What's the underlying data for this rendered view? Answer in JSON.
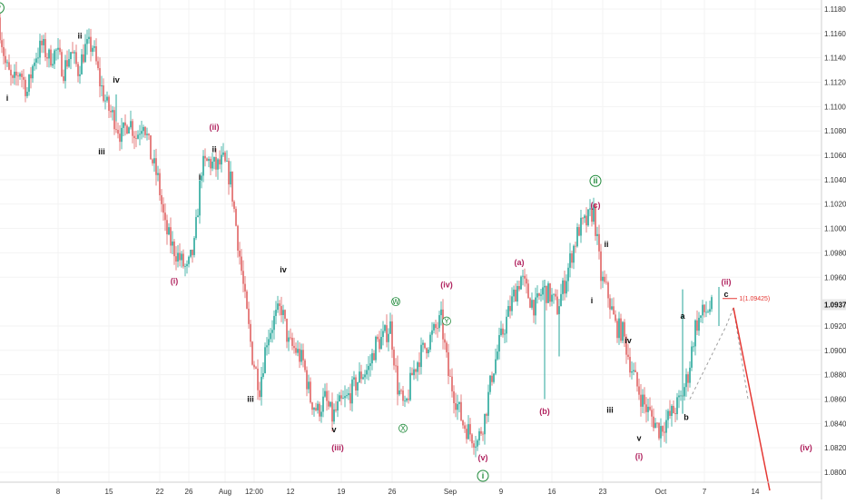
{
  "chart_data": {
    "type": "candlestick",
    "title": "",
    "xlabel": "",
    "ylabel": "",
    "ylim": [
      1.079,
      1.1195
    ],
    "y_ticks": [
      1.118,
      1.116,
      1.114,
      1.112,
      1.11,
      1.108,
      1.106,
      1.104,
      1.102,
      1.1,
      1.098,
      1.096,
      1.092,
      1.09,
      1.088,
      1.086,
      1.084,
      1.082,
      1.08
    ],
    "y_tick_labels": [
      "1.11800",
      "1.11600",
      "1.11400",
      "1.11200",
      "1.11000",
      "1.10800",
      "1.10600",
      "1.10400",
      "1.10200",
      "1.10000",
      "1.09800",
      "1.09600",
      "1.09200",
      "1.09000",
      "1.08800",
      "1.08600",
      "1.08400",
      "1.08200",
      "1.08000"
    ],
    "x_ticks": [
      {
        "label": "8",
        "t": 8
      },
      {
        "label": "15",
        "t": 15
      },
      {
        "label": "22",
        "t": 22
      },
      {
        "label": "26",
        "t": 26
      },
      {
        "label": "Aug",
        "t": 31
      },
      {
        "label": "12:00",
        "t": 35
      },
      {
        "label": "12",
        "t": 40
      },
      {
        "label": "19",
        "t": 47
      },
      {
        "label": "26",
        "t": 54
      },
      {
        "label": "Sep",
        "t": 62
      },
      {
        "label": "9",
        "t": 69
      },
      {
        "label": "16",
        "t": 76
      },
      {
        "label": "23",
        "t": 83
      },
      {
        "label": "Oct",
        "t": 91
      },
      {
        "label": "7",
        "t": 97
      },
      {
        "label": "14",
        "t": 104
      }
    ],
    "current_price": {
      "label": "1.09375",
      "value": 1.09375
    },
    "price_path": [
      [
        0,
        1.1173
      ],
      [
        1,
        1.1135
      ],
      [
        2,
        1.1118
      ],
      [
        3,
        1.113
      ],
      [
        4,
        1.1112
      ],
      [
        5,
        1.114
      ],
      [
        6,
        1.115
      ],
      [
        7,
        1.114
      ],
      [
        8,
        1.1145
      ],
      [
        9,
        1.113
      ],
      [
        10,
        1.1145
      ],
      [
        11,
        1.113
      ],
      [
        12,
        1.1148
      ],
      [
        13,
        1.115
      ],
      [
        14,
        1.112
      ],
      [
        15,
        1.11
      ],
      [
        16,
        1.109
      ],
      [
        17,
        1.1075
      ],
      [
        18,
        1.109
      ],
      [
        19,
        1.1075
      ],
      [
        20,
        1.109
      ],
      [
        21,
        1.106
      ],
      [
        22,
        1.104
      ],
      [
        23,
        1.1
      ],
      [
        24,
        1.0985
      ],
      [
        25,
        1.0975
      ],
      [
        26,
        1.0965
      ],
      [
        27,
        1.0985
      ],
      [
        28,
        1.105
      ],
      [
        29,
        1.1055
      ],
      [
        30,
        1.105
      ],
      [
        31,
        1.1055
      ],
      [
        32,
        1.104
      ],
      [
        33,
        1.099
      ],
      [
        34,
        1.094
      ],
      [
        35,
        1.0895
      ],
      [
        36,
        1.087
      ],
      [
        37,
        1.091
      ],
      [
        38,
        1.0925
      ],
      [
        39,
        1.0935
      ],
      [
        40,
        1.0905
      ],
      [
        41,
        1.09
      ],
      [
        42,
        1.089
      ],
      [
        43,
        1.086
      ],
      [
        44,
        1.085
      ],
      [
        45,
        1.086
      ],
      [
        46,
        1.0845
      ],
      [
        47,
        1.0855
      ],
      [
        48,
        1.086
      ],
      [
        49,
        1.087
      ],
      [
        50,
        1.088
      ],
      [
        51,
        1.0885
      ],
      [
        52,
        1.0905
      ],
      [
        53,
        1.091
      ],
      [
        54,
        1.092
      ],
      [
        55,
        1.087
      ],
      [
        56,
        1.085
      ],
      [
        57,
        1.088
      ],
      [
        58,
        1.0895
      ],
      [
        59,
        1.0905
      ],
      [
        60,
        1.0915
      ],
      [
        61,
        1.0925
      ],
      [
        62,
        1.088
      ],
      [
        63,
        1.086
      ],
      [
        64,
        1.084
      ],
      [
        65,
        1.0832
      ],
      [
        66,
        1.0825
      ],
      [
        67,
        1.0845
      ],
      [
        68,
        1.088
      ],
      [
        69,
        1.0905
      ],
      [
        70,
        1.0925
      ],
      [
        71,
        1.0945
      ],
      [
        72,
        1.096
      ],
      [
        73,
        1.0945
      ],
      [
        74,
        1.0935
      ],
      [
        75,
        1.095
      ],
      [
        76,
        1.0945
      ],
      [
        77,
        1.0935
      ],
      [
        78,
        1.0955
      ],
      [
        79,
        1.098
      ],
      [
        80,
        1.1
      ],
      [
        81,
        1.1005
      ],
      [
        82,
        1.1015
      ],
      [
        83,
        1.096
      ],
      [
        84,
        1.0945
      ],
      [
        85,
        1.092
      ],
      [
        86,
        1.0915
      ],
      [
        87,
        1.089
      ],
      [
        88,
        1.087
      ],
      [
        89,
        1.0855
      ],
      [
        90,
        1.0845
      ],
      [
        91,
        1.0835
      ],
      [
        92,
        1.0842
      ],
      [
        93,
        1.085
      ],
      [
        94,
        1.086
      ],
      [
        95,
        1.088
      ],
      [
        96,
        1.092
      ],
      [
        97,
        1.093
      ],
      [
        98,
        1.0935
      ]
    ],
    "spikes": [
      {
        "t": 16,
        "low": 1.1088,
        "high": 1.111
      },
      {
        "t": 75,
        "low": 1.086,
        "high": 1.0958
      },
      {
        "t": 77,
        "low": 1.0895,
        "high": 1.0935
      },
      {
        "t": 94,
        "low": 1.0848,
        "high": 1.095
      },
      {
        "t": 99,
        "low": 1.092,
        "high": 1.0952
      }
    ],
    "projection": {
      "dashed": [
        [
          95,
          1.086
        ],
        [
          100,
          1.092
        ],
        [
          101,
          1.0935
        ],
        [
          103,
          1.086
        ]
      ],
      "red_line": [
        [
          101,
          1.0935
        ],
        [
          106,
          1.0785
        ]
      ],
      "target_label": "1(1.09425)",
      "target_value": 1.09425
    },
    "wave_labels": [
      {
        "text": "v",
        "t": -0.2,
        "p": 1.1181,
        "style": "green-circle"
      },
      {
        "text": "i",
        "t": 1,
        "p": 1.1107,
        "style": "black"
      },
      {
        "text": "ii",
        "t": 11,
        "p": 1.1158,
        "style": "black"
      },
      {
        "text": "iii",
        "t": 14,
        "p": 1.1063,
        "style": "black"
      },
      {
        "text": "iv",
        "t": 16,
        "p": 1.1122,
        "style": "black"
      },
      {
        "text": "(i)",
        "t": 24,
        "p": 1.0957,
        "style": "magenta"
      },
      {
        "text": "(ii)",
        "t": 29.5,
        "p": 1.1083,
        "style": "magenta"
      },
      {
        "text": "ii",
        "t": 29.5,
        "p": 1.1065,
        "style": "black"
      },
      {
        "text": "i",
        "t": 27.5,
        "p": 1.1042,
        "style": "black"
      },
      {
        "text": "iii",
        "t": 34.5,
        "p": 1.086,
        "style": "black"
      },
      {
        "text": "iv",
        "t": 39,
        "p": 1.0966,
        "style": "black"
      },
      {
        "text": "v",
        "t": 46,
        "p": 1.0835,
        "style": "black"
      },
      {
        "text": "(iii)",
        "t": 46.5,
        "p": 1.082,
        "style": "magenta"
      },
      {
        "text": "(iv)",
        "t": 61.5,
        "p": 1.0954,
        "style": "magenta"
      },
      {
        "text": "W",
        "t": 54.5,
        "p": 1.094,
        "style": "green-small-circle"
      },
      {
        "text": "X",
        "t": 55.5,
        "p": 1.0836,
        "style": "green-small-circle"
      },
      {
        "text": "Y",
        "t": 61.5,
        "p": 1.0924,
        "style": "green-small-circle"
      },
      {
        "text": "(v)",
        "t": 66.5,
        "p": 1.0812,
        "style": "magenta"
      },
      {
        "text": "i",
        "t": 66.5,
        "p": 1.0797,
        "style": "green-circle"
      },
      {
        "text": "(a)",
        "t": 71.5,
        "p": 1.0972,
        "style": "magenta"
      },
      {
        "text": "(b)",
        "t": 75,
        "p": 1.085,
        "style": "magenta"
      },
      {
        "text": "ii",
        "t": 82,
        "p": 1.1039,
        "style": "green-circle"
      },
      {
        "text": "(c)",
        "t": 82,
        "p": 1.1019,
        "style": "magenta"
      },
      {
        "text": "ii",
        "t": 83.5,
        "p": 1.0987,
        "style": "black"
      },
      {
        "text": "i",
        "t": 81.5,
        "p": 1.0941,
        "style": "black"
      },
      {
        "text": "iv",
        "t": 86.5,
        "p": 1.0908,
        "style": "black"
      },
      {
        "text": "iii",
        "t": 84,
        "p": 1.0851,
        "style": "black"
      },
      {
        "text": "v",
        "t": 88,
        "p": 1.0828,
        "style": "black"
      },
      {
        "text": "(i)",
        "t": 88,
        "p": 1.0813,
        "style": "magenta"
      },
      {
        "text": "a",
        "t": 94,
        "p": 1.0928,
        "style": "black"
      },
      {
        "text": "b",
        "t": 94.5,
        "p": 1.0845,
        "style": "black"
      },
      {
        "text": "(ii)",
        "t": 100,
        "p": 1.0956,
        "style": "magenta"
      },
      {
        "text": "c",
        "t": 100,
        "p": 1.0946,
        "style": "black"
      },
      {
        "text": "(iv)",
        "t": 111,
        "p": 1.082,
        "style": "magenta"
      }
    ]
  },
  "colors": {
    "up": "#26a69a",
    "down": "#e06363",
    "projection_red": "#e53935",
    "dashed": "#9e9e9e",
    "grid": "#f3f3f3",
    "axis": "#cfcfcf",
    "price_box": "#e8e8e8"
  }
}
